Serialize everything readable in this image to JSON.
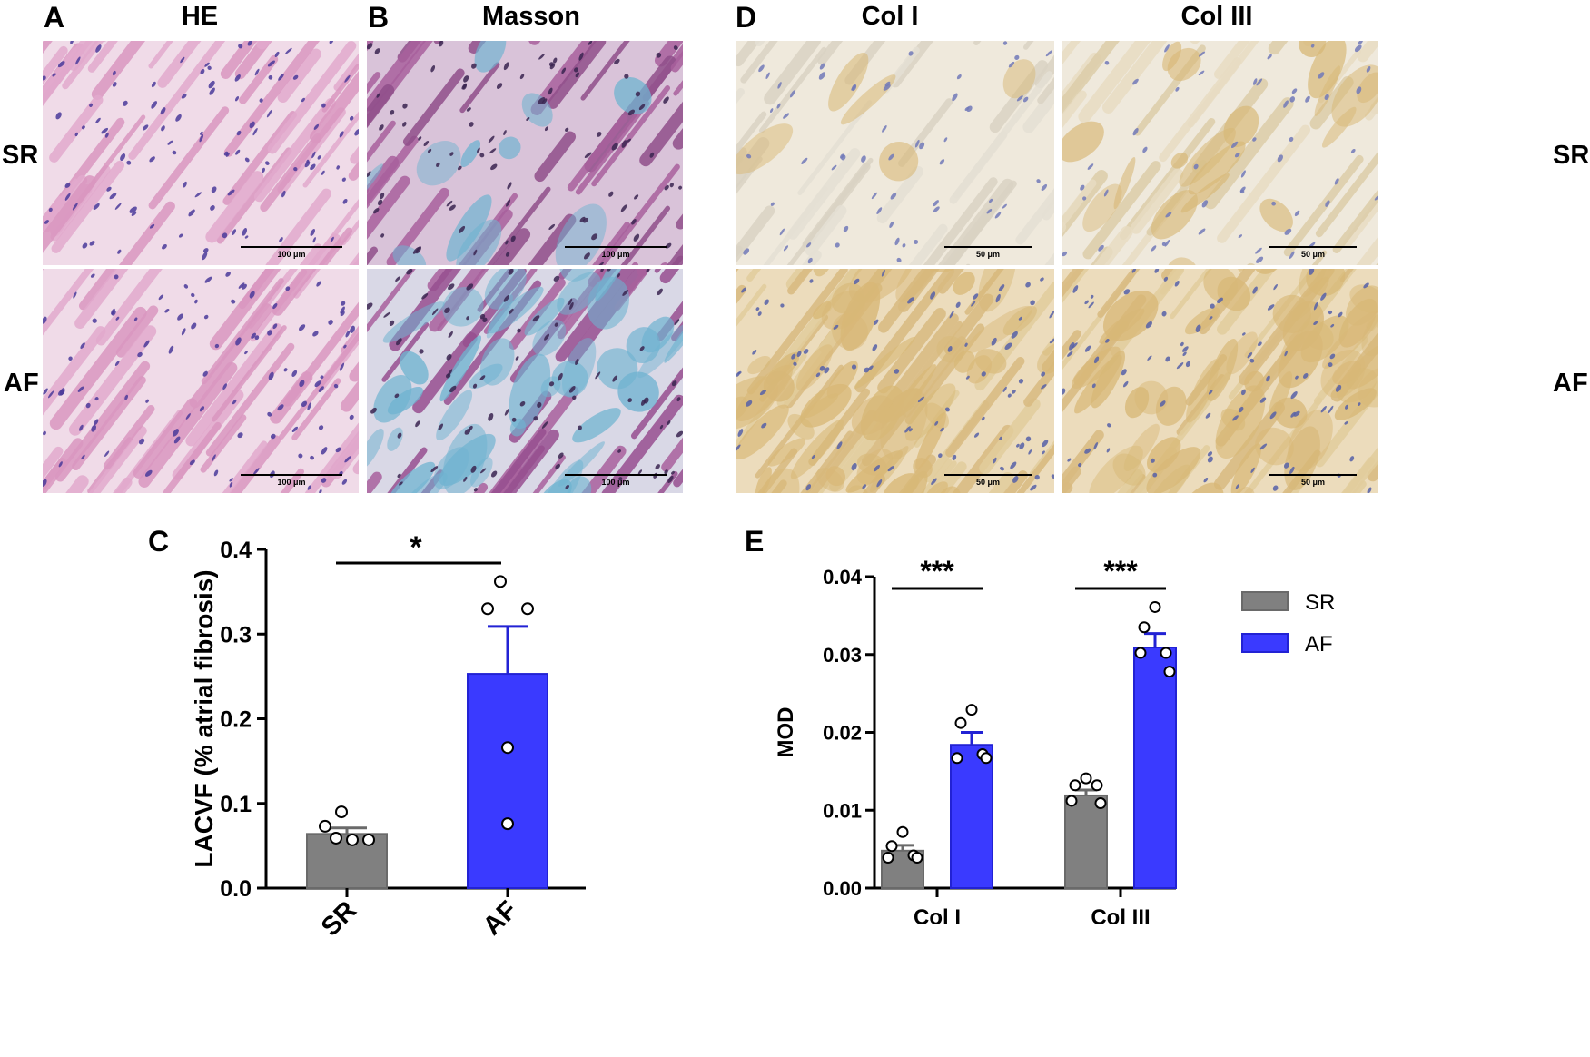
{
  "panel_letters": {
    "a": "A",
    "b": "B",
    "c": "C",
    "d": "D",
    "e": "E"
  },
  "column_titles": {
    "he": "HE",
    "masson": "Masson",
    "col1": "Col I",
    "col3": "Col III"
  },
  "row_labels": {
    "sr": "SR",
    "af": "AF"
  },
  "scale_bars": {
    "he_masson": "100 μm",
    "ihc": "50 μm"
  },
  "colors": {
    "sr_bar": "#808080",
    "af_bar": "#3a3aff",
    "af_bar_edge": "#2222d4",
    "he_stain": "#e2a9cd",
    "masson_stain": "#a8609c",
    "masson_collagen": "#6fb3d0",
    "ihc_background": "#efe9dc",
    "ihc_positive": "#d8b877",
    "nucleus": "#4a3a9a"
  },
  "chart_data": [
    {
      "panel": "C",
      "type": "bar",
      "categories": [
        "SR",
        "AF"
      ],
      "ylabel": "LACVF (% atrial fibrosis)",
      "ylim": [
        0,
        0.4
      ],
      "yticks": [
        "0.0",
        "0.1",
        "0.2",
        "0.3",
        "0.4"
      ],
      "series": [
        {
          "values": [
            0.064,
            0.253
          ],
          "sem": [
            0.007,
            0.056
          ],
          "points": [
            [
              0.09,
              0.073,
              0.059,
              0.057,
              0.057
            ],
            [
              0.362,
              0.33,
              0.33,
              0.166,
              0.076
            ]
          ]
        }
      ],
      "significance": [
        {
          "between": [
            "SR",
            "AF"
          ],
          "label": "*"
        }
      ]
    },
    {
      "panel": "E",
      "type": "bar",
      "categories": [
        "Col I",
        "Col III"
      ],
      "ylabel": "MOD",
      "ylim": [
        0,
        0.04
      ],
      "yticks": [
        "0.00",
        "0.01",
        "0.02",
        "0.03",
        "0.04"
      ],
      "series": [
        {
          "name": "SR",
          "values": [
            0.0048,
            0.0119
          ],
          "sem": [
            0.0007,
            0.0007
          ],
          "points": [
            [
              0.0072,
              0.0054,
              0.0042,
              0.0039,
              0.0039
            ],
            [
              0.0141,
              0.0132,
              0.0132,
              0.0112,
              0.0109
            ]
          ]
        },
        {
          "name": "AF",
          "values": [
            0.0184,
            0.0309
          ],
          "sem": [
            0.0016,
            0.0018
          ],
          "points": [
            [
              0.0229,
              0.0212,
              0.0172,
              0.0167,
              0.0167
            ],
            [
              0.0361,
              0.0335,
              0.0302,
              0.0302,
              0.0278
            ]
          ]
        }
      ],
      "significance": [
        {
          "category": "Col I",
          "label": "***"
        },
        {
          "category": "Col III",
          "label": "***"
        }
      ],
      "legend": "right"
    }
  ]
}
